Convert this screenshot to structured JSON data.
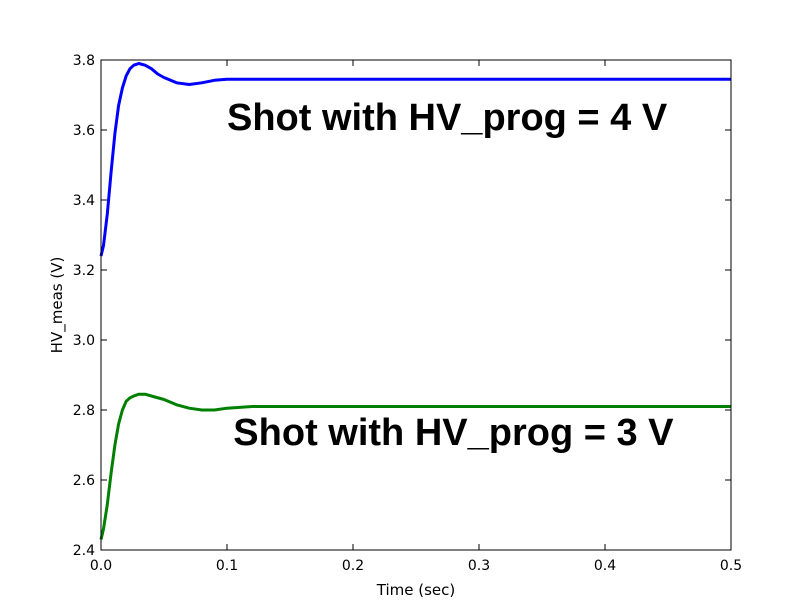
{
  "chart_data": {
    "type": "line",
    "title": "",
    "xlabel": "Time (sec)",
    "ylabel": "HV_meas (V)",
    "xlim": [
      0.0,
      0.5
    ],
    "ylim": [
      2.4,
      3.8
    ],
    "xticks": [
      "0.0",
      "0.1",
      "0.2",
      "0.3",
      "0.4",
      "0.5"
    ],
    "yticks": [
      "2.4",
      "2.6",
      "2.8",
      "3.0",
      "3.2",
      "3.4",
      "3.6",
      "3.8"
    ],
    "grid": false,
    "series": [
      {
        "color": "#0000ff",
        "x": [
          0.0,
          0.002,
          0.005,
          0.008,
          0.011,
          0.014,
          0.017,
          0.02,
          0.023,
          0.026,
          0.03,
          0.035,
          0.04,
          0.045,
          0.05,
          0.06,
          0.07,
          0.08,
          0.09,
          0.1,
          0.12,
          0.15,
          0.2,
          0.3,
          0.4,
          0.5
        ],
        "y": [
          3.24,
          3.27,
          3.36,
          3.48,
          3.59,
          3.67,
          3.72,
          3.755,
          3.775,
          3.785,
          3.79,
          3.785,
          3.775,
          3.76,
          3.75,
          3.735,
          3.73,
          3.735,
          3.742,
          3.745,
          3.745,
          3.745,
          3.745,
          3.745,
          3.745,
          3.745
        ]
      },
      {
        "color": "#008000",
        "x": [
          0.0,
          0.002,
          0.005,
          0.008,
          0.011,
          0.014,
          0.017,
          0.02,
          0.023,
          0.026,
          0.03,
          0.035,
          0.04,
          0.05,
          0.06,
          0.07,
          0.08,
          0.09,
          0.1,
          0.12,
          0.15,
          0.2,
          0.3,
          0.4,
          0.5
        ],
        "y": [
          2.43,
          2.46,
          2.53,
          2.62,
          2.7,
          2.76,
          2.8,
          2.825,
          2.835,
          2.84,
          2.845,
          2.845,
          2.84,
          2.83,
          2.815,
          2.805,
          2.8,
          2.8,
          2.805,
          2.81,
          2.81,
          2.81,
          2.81,
          2.81,
          2.81
        ]
      }
    ],
    "annotations": [
      {
        "text": "Shot with HV_prog = 4 V",
        "x": 0.1,
        "y": 3.6
      },
      {
        "text": "Shot with HV_prog = 3 V",
        "x": 0.105,
        "y": 2.7
      }
    ]
  }
}
